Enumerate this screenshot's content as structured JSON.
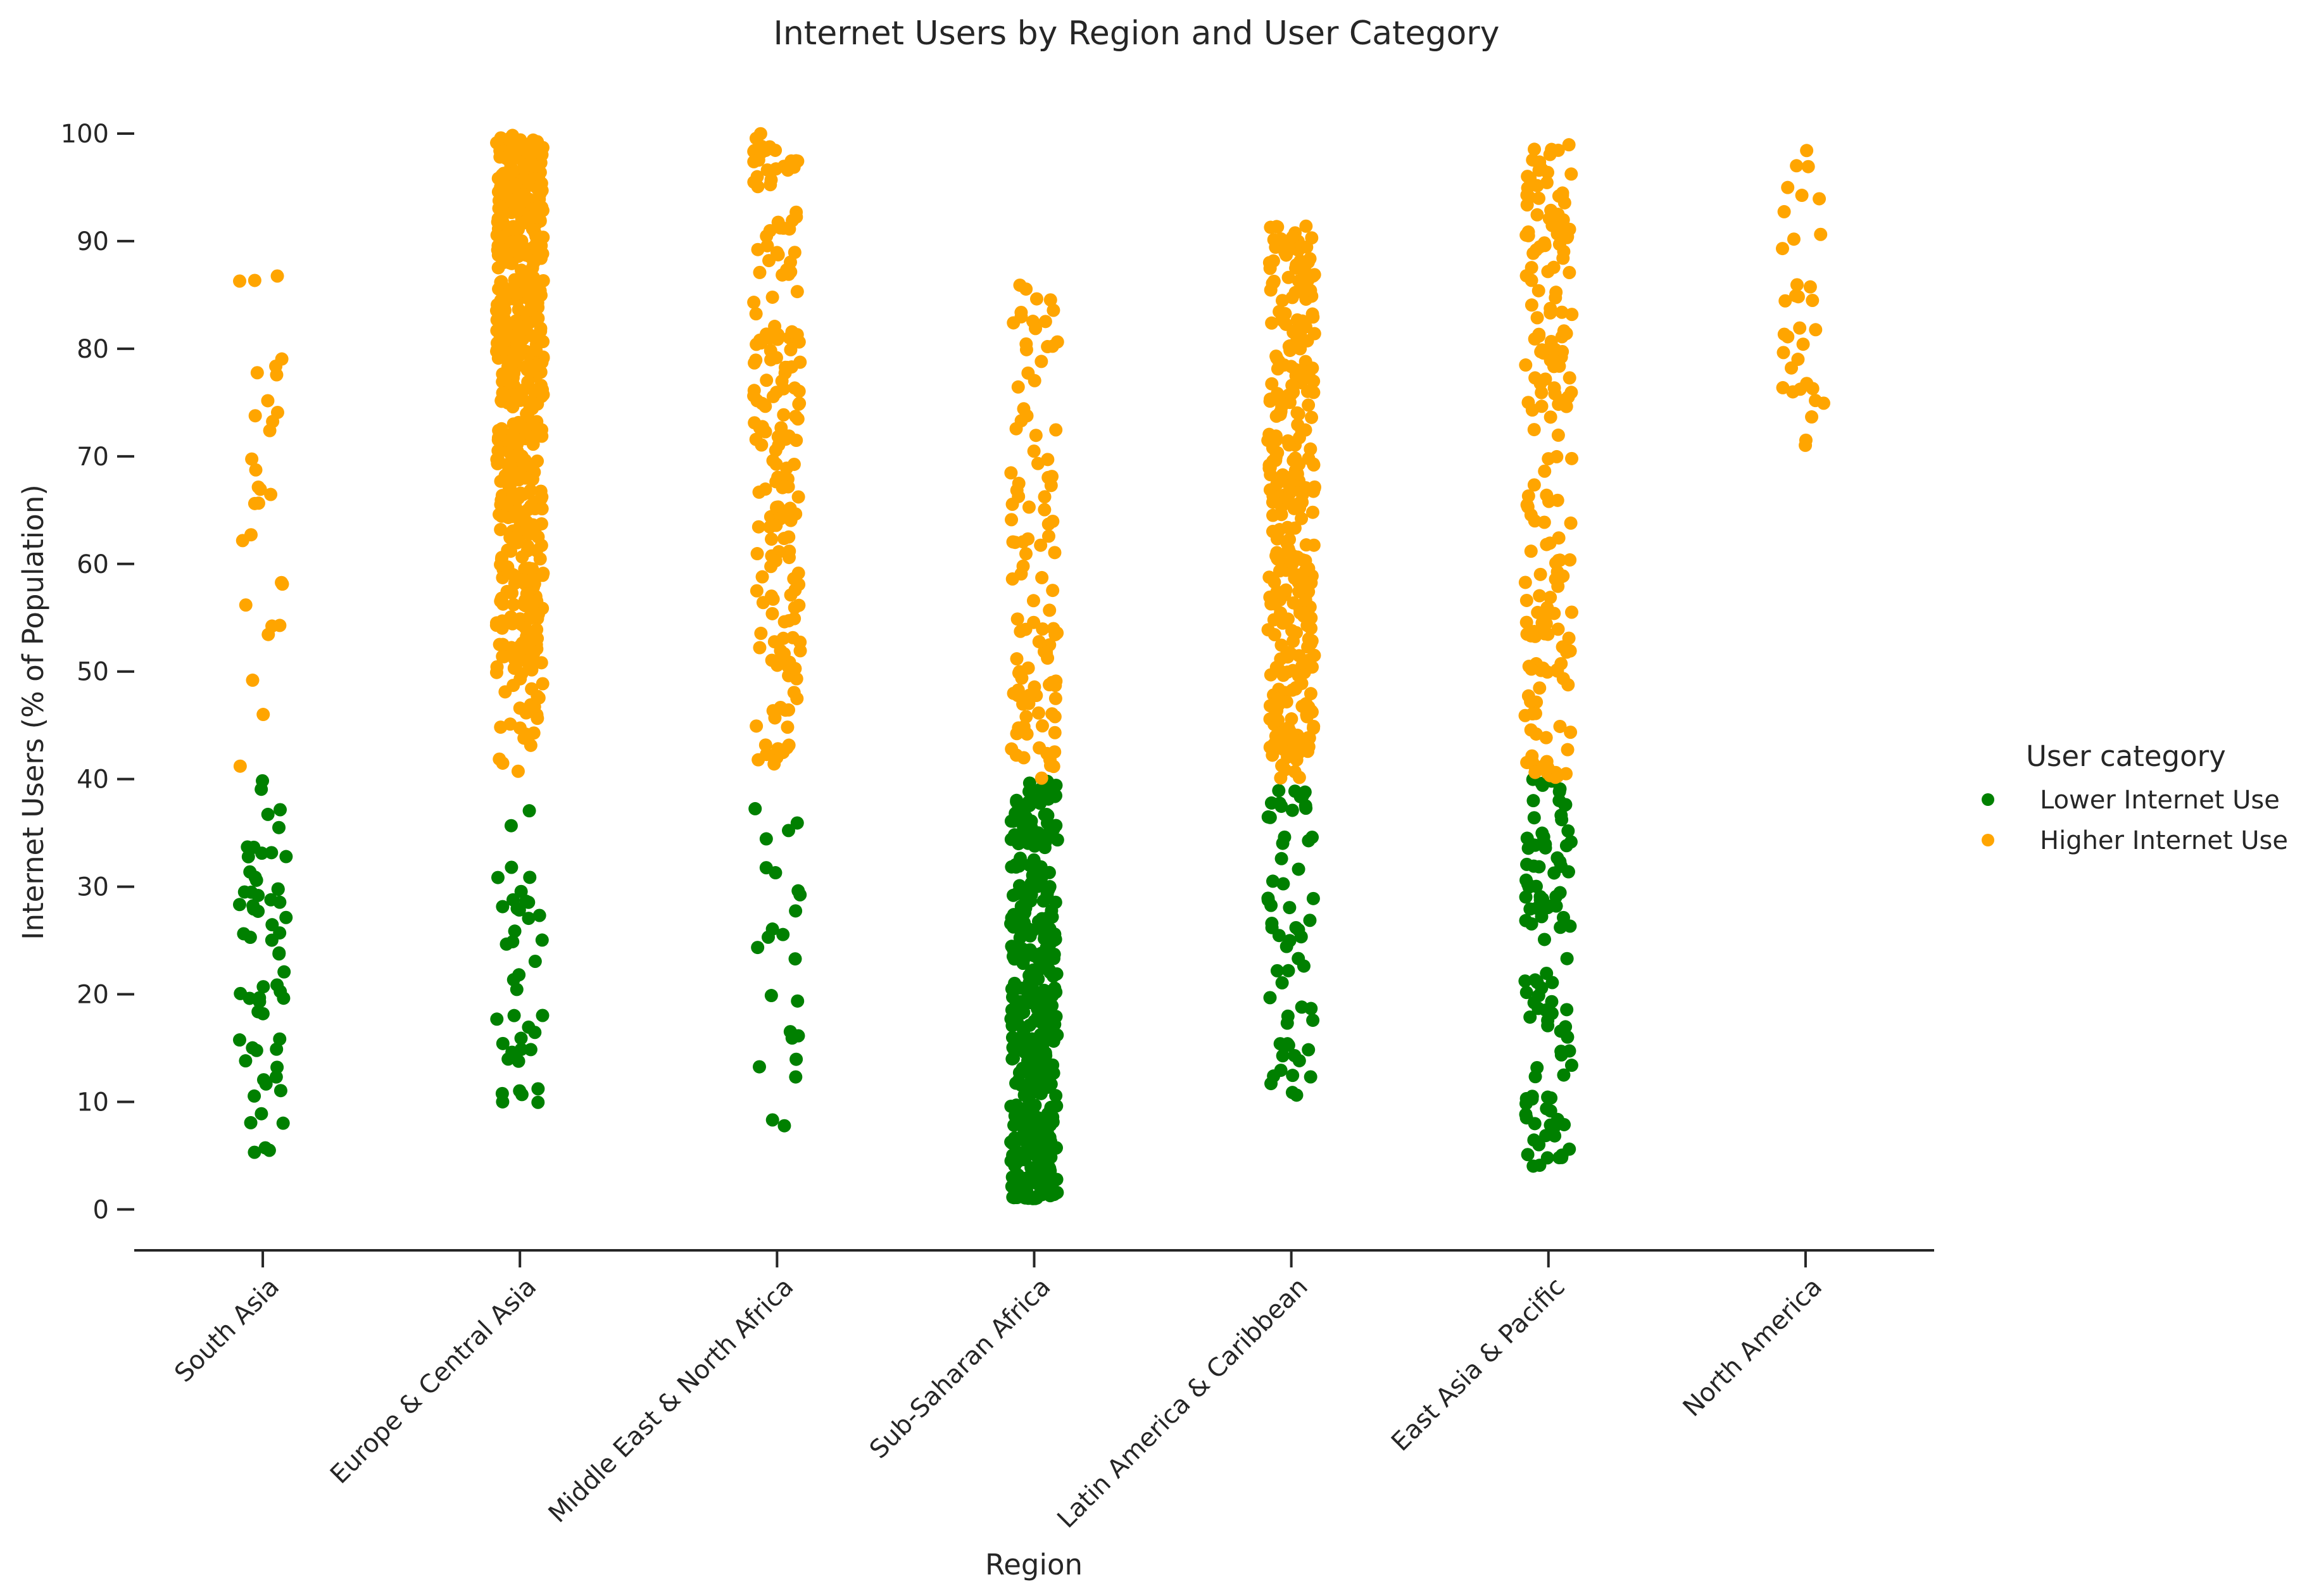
{
  "chart_data": {
    "type": "scatter",
    "subtype": "strip",
    "title": "Internet Users by Region and User Category",
    "xlabel": "Region",
    "ylabel": "Internet Users (% of Population)",
    "categories": [
      "South Asia",
      "Europe & Central Asia",
      "Middle East & North Africa",
      "Sub-Saharan Africa",
      "Latin America & Caribbean",
      "East Asia & Pacific",
      "North America"
    ],
    "y_ticks": [
      0,
      10,
      20,
      30,
      40,
      50,
      60,
      70,
      80,
      90,
      100
    ],
    "ylim": [
      -3.8,
      103
    ],
    "grid": false,
    "legend": {
      "title": "User category",
      "position": "right",
      "entries": [
        {
          "label": "Lower Internet Use",
          "color": "#008000"
        },
        {
          "label": "Higher Internet Use",
          "color": "#FFA500"
        }
      ]
    },
    "series": [
      {
        "name": "Lower Internet Use",
        "color": "#008000",
        "groups": [
          {
            "count": 62,
            "min": 5,
            "max": 40
          },
          {
            "count": 40,
            "min": 7,
            "max": 38
          },
          {
            "count": 24,
            "min": 7,
            "max": 38
          },
          {
            "count": 420,
            "min": 1,
            "max": 40
          },
          {
            "count": 60,
            "min": 10,
            "max": 40
          },
          {
            "count": 110,
            "min": 3.5,
            "max": 40
          },
          {
            "count": 0,
            "min": 0,
            "max": 0
          }
        ]
      },
      {
        "name": "Higher Internet Use",
        "color": "#FFA500",
        "groups": [
          {
            "count": 30,
            "min": 41,
            "max": 87
          },
          {
            "count": 560,
            "min": 40.5,
            "max": 100
          },
          {
            "count": 190,
            "min": 41,
            "max": 100
          },
          {
            "count": 110,
            "min": 40,
            "max": 87
          },
          {
            "count": 330,
            "min": 40,
            "max": 91.5
          },
          {
            "count": 190,
            "min": 40,
            "max": 99
          },
          {
            "count": 34,
            "min": 71,
            "max": 98.5
          }
        ]
      }
    ]
  }
}
